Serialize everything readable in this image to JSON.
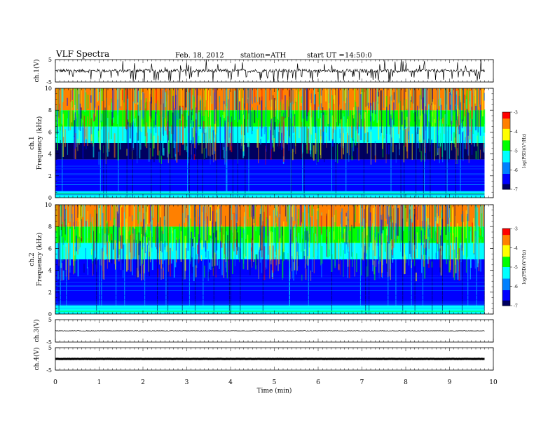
{
  "header": {
    "title": "VLF Spectra",
    "date": "Feb. 18, 2012",
    "station": "station=ATH",
    "start_label": "start UT =",
    "start_time": "14:50:0"
  },
  "x_axis": {
    "label": "Time (min)",
    "ticks": [
      "0",
      "1",
      "2",
      "3",
      "4",
      "5",
      "6",
      "7",
      "8",
      "9",
      "10"
    ],
    "range": [
      0,
      10
    ]
  },
  "colorbar": {
    "label": "log(PSD)(V²/Hz)",
    "ticks": [
      "-3",
      "-4",
      "-5",
      "-6",
      "-7"
    ],
    "colors": [
      "#ff0000",
      "#ff8000",
      "#ffff00",
      "#00ff00",
      "#00ffff",
      "#0080ff",
      "#0000ff",
      "#000060"
    ]
  },
  "chart_data": [
    {
      "type": "line",
      "name": "ch.1(V)",
      "ylabel": "ch.1(V)",
      "yticks": [
        "5",
        "-5"
      ],
      "ylim": [
        -5,
        5
      ],
      "xlim": [
        0,
        10
      ],
      "data_end_min": 9.8,
      "baseline": 0,
      "noise_amplitude": 1.5,
      "spikes": "frequent short negative/positive spikes"
    },
    {
      "type": "heatmap",
      "name": "ch.1",
      "ylabel": "ch.1 Frequency (kHz)",
      "yticks": [
        "0",
        "2",
        "4",
        "6",
        "8",
        "10"
      ],
      "ylim": [
        0,
        10
      ],
      "xlim": [
        0,
        10
      ],
      "data_end_min": 9.8,
      "colorbar": "log(PSD)(V²/Hz)",
      "clim": [
        -7,
        -3
      ],
      "bands": [
        {
          "freq_range_khz": [
            0,
            0.6
          ],
          "log_psd": -5.5
        },
        {
          "freq_range_khz": [
            0.6,
            3.5
          ],
          "log_psd": -6.3
        },
        {
          "freq_range_khz": [
            3.5,
            5
          ],
          "log_psd": -6.8
        },
        {
          "freq_range_khz": [
            5,
            6.5
          ],
          "log_psd": -5.2
        },
        {
          "freq_range_khz": [
            6.5,
            8
          ],
          "log_psd": -4.6
        },
        {
          "freq_range_khz": [
            8,
            10
          ],
          "log_psd": -3.8
        }
      ],
      "note_line_khz": 0.4
    },
    {
      "type": "heatmap",
      "name": "ch.2",
      "ylabel": "ch.2 Frequency (kHz)",
      "yticks": [
        "0",
        "2",
        "4",
        "6",
        "8",
        "10"
      ],
      "ylim": [
        0,
        10
      ],
      "xlim": [
        0,
        10
      ],
      "data_end_min": 9.8,
      "colorbar": "log(PSD)(V²/Hz)",
      "clim": [
        -7,
        -3
      ],
      "bands": [
        {
          "freq_range_khz": [
            0,
            0.8
          ],
          "log_psd": -5.4
        },
        {
          "freq_range_khz": [
            0.8,
            3.5
          ],
          "log_psd": -6.2
        },
        {
          "freq_range_khz": [
            3.5,
            5
          ],
          "log_psd": -6.7
        },
        {
          "freq_range_khz": [
            5,
            6.5
          ],
          "log_psd": -5.2
        },
        {
          "freq_range_khz": [
            6.5,
            8
          ],
          "log_psd": -4.6
        },
        {
          "freq_range_khz": [
            8,
            10
          ],
          "log_psd": -3.8
        }
      ],
      "note_line_khz": 0.3
    },
    {
      "type": "line",
      "name": "ch.3(V)",
      "ylabel": "ch.3(V)",
      "yticks": [
        "5",
        "-5"
      ],
      "ylim": [
        -5,
        5
      ],
      "xlim": [
        0,
        10
      ],
      "data_end_min": 9.8,
      "baseline": 0,
      "noise_amplitude": 0.2
    },
    {
      "type": "line",
      "name": "ch.4(V)",
      "ylabel": "ch.4(V)",
      "yticks": [
        "5",
        "-5"
      ],
      "ylim": [
        -5,
        5
      ],
      "xlim": [
        0,
        10
      ],
      "data_end_min": 9.8,
      "baseline": 0,
      "noise_amplitude": 0.1
    }
  ]
}
